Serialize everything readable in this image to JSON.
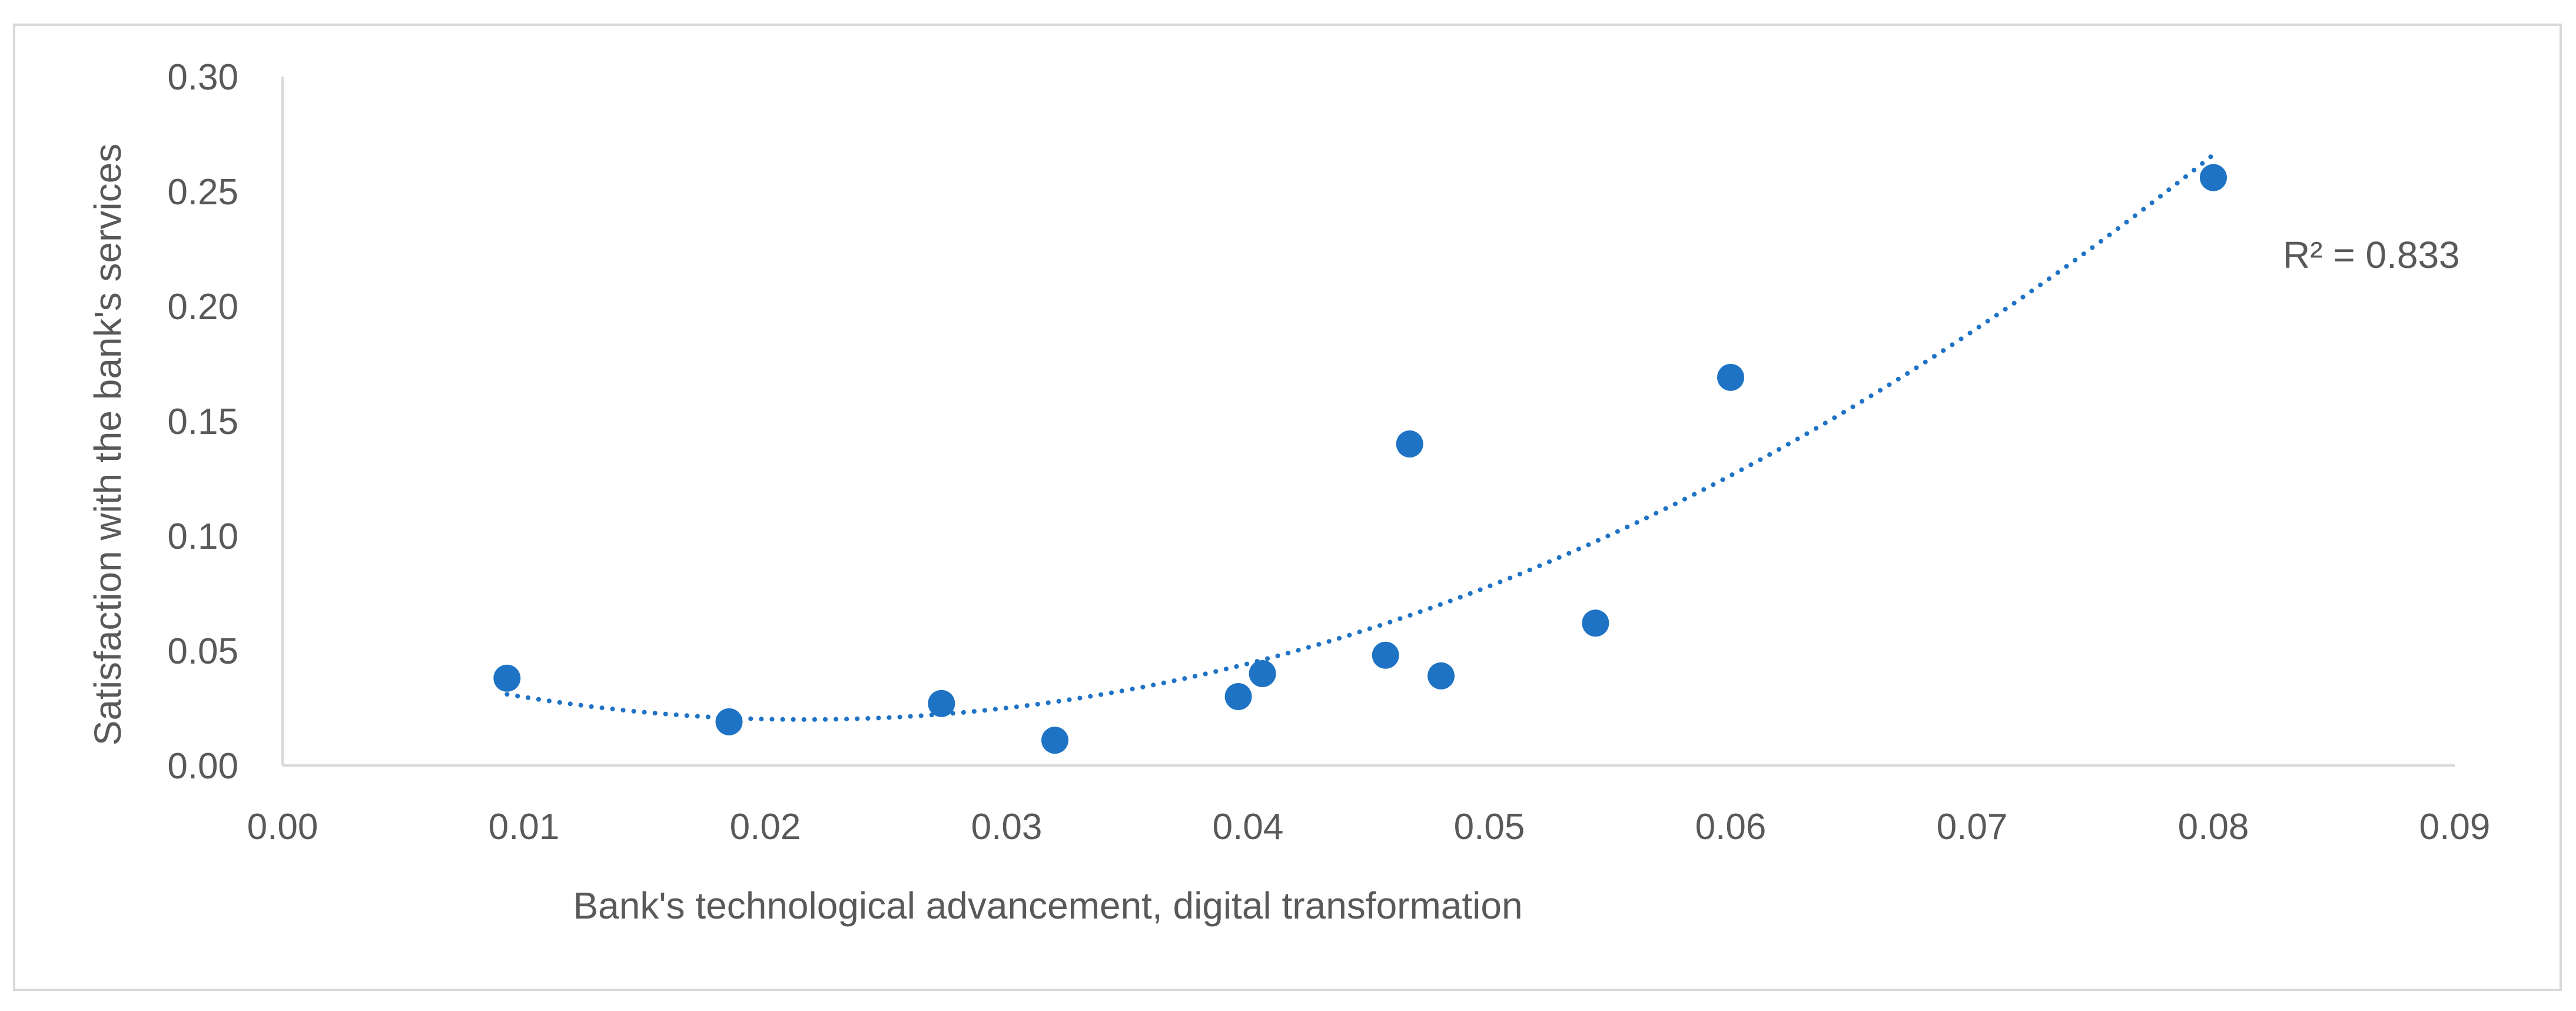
{
  "chart_data": {
    "type": "scatter",
    "xlabel": "Bank's technological advancement, digital transformation",
    "ylabel": "Satisfaction with the bank's services",
    "xlim": [
      0,
      0.09
    ],
    "ylim": [
      0,
      0.3
    ],
    "x_ticks": [
      "0.00",
      "0.01",
      "0.02",
      "0.03",
      "0.04",
      "0.05",
      "0.06",
      "0.07",
      "0.08",
      "0.09"
    ],
    "y_ticks": [
      "0.00",
      "0.05",
      "0.10",
      "0.15",
      "0.20",
      "0.25",
      "0.30"
    ],
    "grid": false,
    "marker_color": "#1f73c4",
    "trendline_color": "#1f73c4",
    "points": [
      {
        "x": 0.0093,
        "y": 0.038
      },
      {
        "x": 0.0185,
        "y": 0.019
      },
      {
        "x": 0.0273,
        "y": 0.027
      },
      {
        "x": 0.032,
        "y": 0.011
      },
      {
        "x": 0.0396,
        "y": 0.03
      },
      {
        "x": 0.0406,
        "y": 0.04
      },
      {
        "x": 0.0457,
        "y": 0.048
      },
      {
        "x": 0.0467,
        "y": 0.14
      },
      {
        "x": 0.048,
        "y": 0.039
      },
      {
        "x": 0.0544,
        "y": 0.062
      },
      {
        "x": 0.06,
        "y": 0.169
      },
      {
        "x": 0.08,
        "y": 0.256
      }
    ],
    "trendline": {
      "type": "polynomial",
      "order": 2,
      "x_range": [
        0.0093,
        0.08
      ],
      "points": [
        {
          "x": 0.0093,
          "y": 0.031
        },
        {
          "x": 0.022,
          "y": 0.02
        },
        {
          "x": 0.08,
          "y": 0.266
        }
      ],
      "label": "R² = 0.833"
    }
  }
}
